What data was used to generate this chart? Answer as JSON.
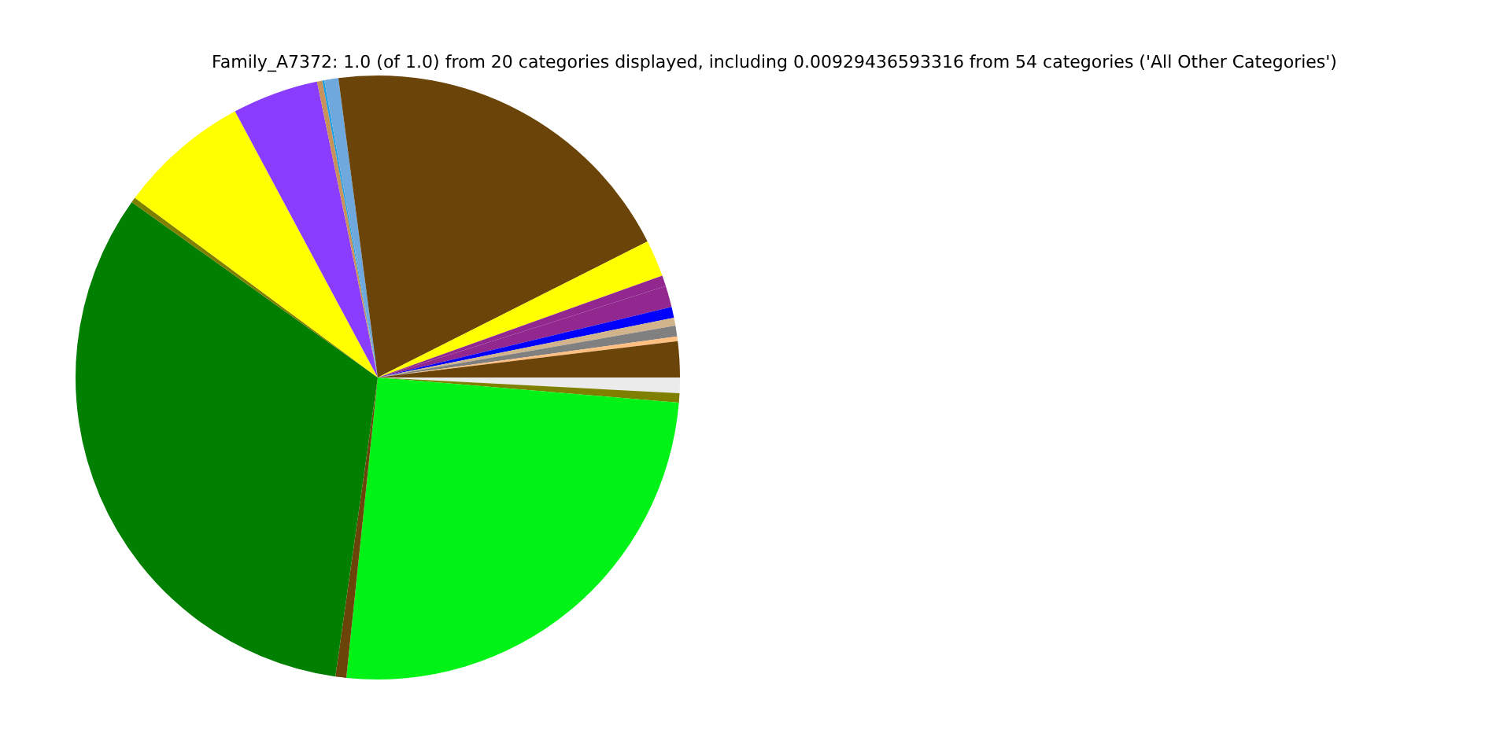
{
  "chart_data": {
    "type": "pie",
    "title": "Family_A7372: 1.0 (of 1.0) from 20 categories displayed, including 0.00929436593316 from 54 categories ('All Other Categories')",
    "categories": [
      null,
      null,
      null,
      null,
      null,
      null,
      null,
      null,
      null,
      null,
      null,
      null,
      null,
      null,
      null,
      null,
      null,
      null,
      null,
      null
    ],
    "values": [
      0.83,
      0.5,
      25.33,
      0.58,
      32.62,
      0.28,
      7.03,
      4.61,
      0.28,
      0.11,
      0.75,
      19.64,
      1.97,
      0.58,
      1.14,
      0.58,
      0.42,
      0.58,
      0.25,
      1.92
    ],
    "colors": [
      "#ebebeb",
      "#808000",
      "#00f216",
      "#6b4409",
      "#007f00",
      "#808000",
      "#ffff00",
      "#8b3dff",
      "#c8925a",
      "#1ea0e0",
      "#6fa8dc",
      "#6b4409",
      "#ffff00",
      "#91278f",
      "#91278f",
      "#0000ff",
      "#d2b48c",
      "#808080",
      "#ffbf80",
      "#6b4409"
    ],
    "legend": false
  }
}
